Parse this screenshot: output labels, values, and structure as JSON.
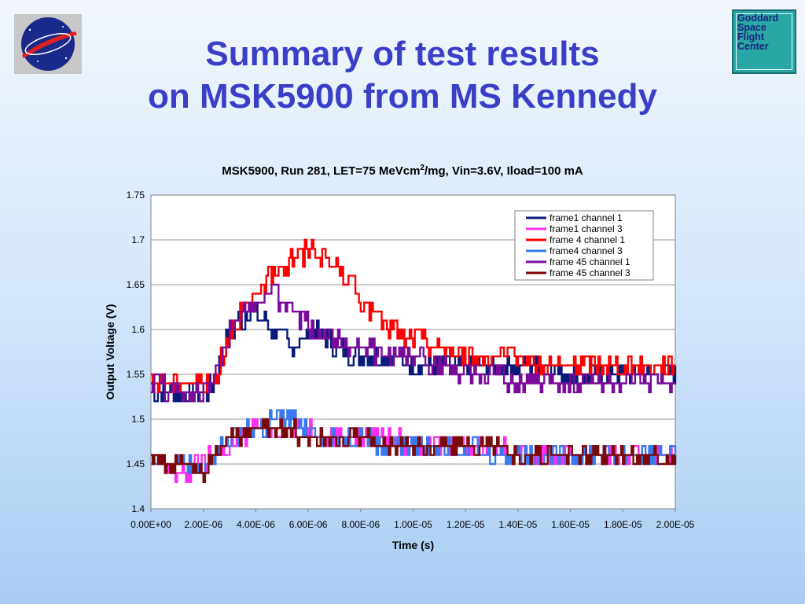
{
  "slide": {
    "title_line1": "Summary of test results",
    "title_line2": "on MSK5900 from MS Kennedy",
    "gsfc_logo_lines": [
      "Goddard",
      "Space",
      "Flight",
      "Center"
    ]
  },
  "chart_data": {
    "type": "line",
    "title_prefix": "MSK5900, Run 281, LET=75 MeVcm",
    "title_sup": "2",
    "title_suffix": "/mg, Vin=3.6V, Iload=100 mA",
    "xlabel": "Time (s)",
    "ylabel": "Output Voltage (V)",
    "xlim": [
      0,
      2e-05
    ],
    "ylim": [
      1.4,
      1.75
    ],
    "xticks": [
      "0.00E+00",
      "2.00E-06",
      "4.00E-06",
      "6.00E-06",
      "8.00E-06",
      "1.00E-05",
      "1.20E-05",
      "1.40E-05",
      "1.60E-05",
      "1.80E-05",
      "2.00E-05"
    ],
    "yticks": [
      "1.4",
      "1.45",
      "1.5",
      "1.55",
      "1.6",
      "1.65",
      "1.7",
      "1.75"
    ],
    "grid": "horizontal",
    "legend_position": "top-right",
    "series": [
      {
        "name": "frame1 channel 1",
        "color": "#0a1a7a",
        "x_us": [
          0,
          1,
          2,
          2.4,
          3,
          3.8,
          4.6,
          5.4,
          6.2,
          7,
          8,
          9,
          10,
          11,
          12,
          13,
          14,
          15,
          16,
          17,
          18,
          19,
          20
        ],
        "v": [
          1.53,
          1.53,
          1.53,
          1.54,
          1.6,
          1.62,
          1.6,
          1.58,
          1.6,
          1.58,
          1.57,
          1.57,
          1.56,
          1.56,
          1.56,
          1.56,
          1.56,
          1.56,
          1.55,
          1.55,
          1.55,
          1.55,
          1.55
        ]
      },
      {
        "name": "frame1 channel 3",
        "color": "#ff2ef0",
        "x_us": [
          0,
          1,
          2,
          2.4,
          3,
          4,
          5,
          6,
          7,
          8,
          9,
          10,
          11,
          12,
          13,
          14,
          15,
          16,
          17,
          18,
          19,
          20
        ],
        "v": [
          1.45,
          1.44,
          1.45,
          1.46,
          1.47,
          1.49,
          1.49,
          1.49,
          1.48,
          1.48,
          1.48,
          1.47,
          1.47,
          1.47,
          1.47,
          1.46,
          1.46,
          1.46,
          1.46,
          1.46,
          1.46,
          1.46
        ]
      },
      {
        "name": "frame 4 channel 1",
        "color": "#ff0000",
        "x_us": [
          0,
          1,
          2,
          2.4,
          3,
          3.8,
          4.6,
          5.4,
          6.2,
          7,
          7.5,
          8,
          8.5,
          9,
          10,
          11,
          12,
          13,
          14,
          15,
          16,
          17,
          18,
          19,
          20
        ],
        "v": [
          1.54,
          1.54,
          1.54,
          1.54,
          1.6,
          1.63,
          1.66,
          1.68,
          1.69,
          1.67,
          1.66,
          1.63,
          1.62,
          1.6,
          1.59,
          1.58,
          1.57,
          1.57,
          1.57,
          1.56,
          1.56,
          1.56,
          1.56,
          1.56,
          1.56
        ]
      },
      {
        "name": "frame4 channel 3",
        "color": "#3a78f0",
        "x_us": [
          0,
          1,
          2,
          2.4,
          3,
          4,
          5,
          6,
          7,
          8,
          9,
          10,
          11,
          12,
          13,
          14,
          15,
          16,
          17,
          18,
          19,
          20
        ],
        "v": [
          1.46,
          1.45,
          1.44,
          1.46,
          1.48,
          1.49,
          1.5,
          1.49,
          1.48,
          1.48,
          1.47,
          1.47,
          1.47,
          1.47,
          1.46,
          1.46,
          1.46,
          1.46,
          1.46,
          1.46,
          1.46,
          1.46
        ]
      },
      {
        "name": "frame 45 channel 1",
        "color": "#7a0a9a",
        "x_us": [
          0,
          1,
          2,
          2.4,
          3,
          3.8,
          4.6,
          5.4,
          6.2,
          7,
          8,
          9,
          10,
          11,
          12,
          13,
          14,
          15,
          16,
          17,
          18,
          19,
          20
        ],
        "v": [
          1.54,
          1.53,
          1.53,
          1.54,
          1.6,
          1.63,
          1.64,
          1.62,
          1.6,
          1.59,
          1.58,
          1.57,
          1.57,
          1.56,
          1.55,
          1.55,
          1.54,
          1.54,
          1.54,
          1.54,
          1.54,
          1.54,
          1.54
        ]
      },
      {
        "name": "frame 45 channel 3",
        "color": "#7a0a0a",
        "x_us": [
          0,
          1,
          2,
          2.4,
          3,
          4,
          5,
          6,
          7,
          8,
          9,
          10,
          11,
          12,
          13,
          14,
          15,
          16,
          17,
          18,
          19,
          20
        ],
        "v": [
          1.46,
          1.45,
          1.44,
          1.46,
          1.48,
          1.49,
          1.49,
          1.48,
          1.48,
          1.48,
          1.47,
          1.47,
          1.47,
          1.47,
          1.47,
          1.46,
          1.46,
          1.46,
          1.46,
          1.46,
          1.46,
          1.46
        ]
      }
    ]
  }
}
